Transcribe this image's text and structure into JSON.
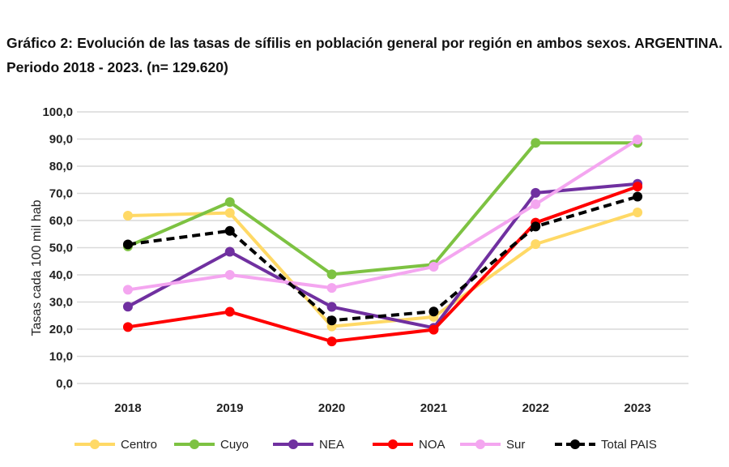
{
  "title": "Gráfico 2: Evolución de las tasas de sífilis en población general por región en ambos sexos. ARGENTINA. Periodo 2018 - 2023. (n= 129.620)",
  "chart_data": {
    "type": "line",
    "title": "Gráfico 2: Evolución de las tasas de sífilis en población general por región en ambos sexos. ARGENTINA. Periodo 2018 - 2023. (n= 129.620)",
    "xlabel": "",
    "ylabel": "Tasas cada 100 mil hab",
    "categories": [
      "2018",
      "2019",
      "2020",
      "2021",
      "2022",
      "2023"
    ],
    "ylim": [
      0,
      100
    ],
    "yticks": [
      "0,0",
      "10,0",
      "20,0",
      "30,0",
      "40,0",
      "50,0",
      "60,0",
      "70,0",
      "80,0",
      "90,0",
      "100,0"
    ],
    "grid": true,
    "legend": "bottom",
    "series": [
      {
        "name": "Centro",
        "color": "#FFD966",
        "dashed": false,
        "values": [
          61.8,
          62.8,
          21.0,
          24.5,
          51.3,
          63.0
        ]
      },
      {
        "name": "Cuyo",
        "color": "#7DC242",
        "dashed": false,
        "values": [
          50.5,
          66.8,
          40.2,
          43.8,
          88.6,
          88.6
        ]
      },
      {
        "name": "NEA",
        "color": "#7030A0",
        "dashed": false,
        "values": [
          28.3,
          48.5,
          28.2,
          20.5,
          70.2,
          73.5
        ]
      },
      {
        "name": "NOA",
        "color": "#FF0000",
        "dashed": false,
        "values": [
          20.8,
          26.4,
          15.5,
          19.8,
          59.2,
          72.5
        ]
      },
      {
        "name": "Sur",
        "color": "#F4A6F0",
        "dashed": false,
        "values": [
          34.5,
          40.0,
          35.2,
          43.0,
          66.0,
          89.8
        ]
      },
      {
        "name": "Total PAIS",
        "color": "#000000",
        "dashed": true,
        "values": [
          51.2,
          56.2,
          23.2,
          26.5,
          57.8,
          68.8
        ]
      }
    ]
  }
}
